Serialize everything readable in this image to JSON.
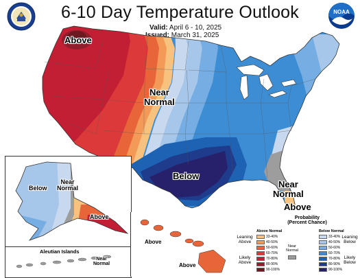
{
  "header": {
    "title": "6-10 Day Temperature Outlook",
    "valid_label": "Valid:",
    "valid_value": "April 6 - 10, 2025",
    "issued_label": "Issued:",
    "issued_value": "March 31, 2025"
  },
  "logos": {
    "left": "commerce-seal-icon",
    "right": "noaa-logo-icon",
    "noaa_text": "NOAA"
  },
  "colors": {
    "above_90_100": "#6b1a22",
    "above_80_90": "#8f1f2c",
    "above_70_80": "#c21e34",
    "above_60_70": "#dc3a3a",
    "above_50_60": "#e8653a",
    "above_40_50": "#f39a58",
    "above_33_40": "#f6c27e",
    "near_normal": "#9d9d9d",
    "below_33_40": "#c8d8ee",
    "below_40_50": "#a6c6ea",
    "below_50_60": "#76aee3",
    "below_60_70": "#3d8dd4",
    "below_70_80": "#1e62b4",
    "below_80_90": "#1e3b8c",
    "below_90_100": "#27206a"
  },
  "map_labels": {
    "above_northwest": "Above",
    "near_normal_central_1": "Near",
    "near_normal_central_2": "Normal",
    "below_south": "Below",
    "near_normal_southeast_1": "Near",
    "near_normal_southeast_2": "Normal",
    "above_florida": "Above"
  },
  "alaska": {
    "below": "Below",
    "near_1": "Near",
    "near_2": "Normal",
    "above": "Above",
    "aleutian_title": "Aleutian Islands",
    "aleutian_near_1": "Near",
    "aleutian_near_2": "Normal"
  },
  "hawaii": {
    "above_1": "Above",
    "above_2": "Above"
  },
  "legend": {
    "header_1": "Probability",
    "header_2": "(Percent Chance)",
    "above_normal": "Above Normal",
    "below_normal": "Below Normal",
    "near_normal_1": "Near",
    "near_normal_2": "Normal",
    "leaning_above_1": "Leaning",
    "leaning_above_2": "Above",
    "likely_above_1": "Likely",
    "likely_above_2": "Above",
    "leaning_below_1": "Leaning",
    "leaning_below_2": "Below",
    "likely_below_1": "Likely",
    "likely_below_2": "Below",
    "ranges": [
      "33-40%",
      "40-50%",
      "50-60%",
      "60-70%",
      "70-80%",
      "80-90%",
      "90-100%"
    ]
  }
}
